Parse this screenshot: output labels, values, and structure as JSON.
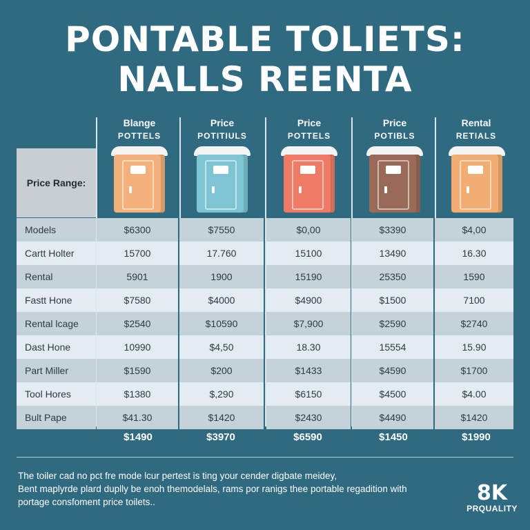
{
  "title": {
    "line1": "PONTABLE TOLIETS:",
    "line2": "NALLS REENTA"
  },
  "colors": {
    "background": "#2f6a80",
    "row_light": "#e2ecf1",
    "row_dark": "#c4d2da"
  },
  "columns": [
    {
      "h1": "Blange",
      "h2": "POTTELS",
      "color": "#f3b07a"
    },
    {
      "h1": "Price",
      "h2": "POTITIULS",
      "color": "#7fc4d3"
    },
    {
      "h1": "Price",
      "h2": "POTTELS",
      "color": "#ef7b66"
    },
    {
      "h1": "Price",
      "h2": "POTIBLS",
      "color": "#9a6a58"
    },
    {
      "h1": "Rental",
      "h2": "RETIALS",
      "color": "#f2ad73"
    }
  ],
  "row_label": "Price Range:",
  "rows": [
    {
      "name": "Models",
      "values": [
        "$6300",
        "$7550",
        "$0,00",
        "$3390",
        "$4,00"
      ]
    },
    {
      "name": "Cartt Holter",
      "values": [
        "15700",
        "17.760",
        "15100",
        "13490",
        "16.30"
      ]
    },
    {
      "name": "Rental",
      "values": [
        "5901",
        "1900",
        "15190",
        "25350",
        "1590"
      ]
    },
    {
      "name": "Fastt Hone",
      "values": [
        "$7580",
        "$4000",
        "$4900",
        "$1500",
        "7100"
      ]
    },
    {
      "name": "Rental lcage",
      "values": [
        "$2540",
        "$10590",
        "$7,900",
        "$2590",
        "$2740"
      ]
    },
    {
      "name": "Dast Hone",
      "values": [
        "10990",
        "$4,50",
        "18.30",
        "15554",
        "15.90"
      ]
    },
    {
      "name": "Part Miller",
      "values": [
        "$1590",
        "$200",
        "$1433",
        "$4590",
        "$1700"
      ]
    },
    {
      "name": "Tool Hores",
      "values": [
        "$1380",
        "$,290",
        "$6150",
        "$4500",
        "$4.00"
      ]
    },
    {
      "name": "Bult Pape",
      "values": [
        "$41.30",
        "$1420",
        "$2430",
        "$4490",
        "$1420"
      ]
    }
  ],
  "totals": [
    "$1490",
    "$3970",
    "$6590",
    "$1450",
    "$1990"
  ],
  "footer": {
    "line1": "The toiler cad no pct fre mode lcur pertest is ting your cender digbate meidey,",
    "line2": "Bent maplyrde plard duplly be enoh themodelals, rams por ranigs thee portable regadition with",
    "line3": "portage consfoment price toilets.."
  },
  "badge": {
    "big": "8K",
    "small": "PRQUALITY"
  }
}
